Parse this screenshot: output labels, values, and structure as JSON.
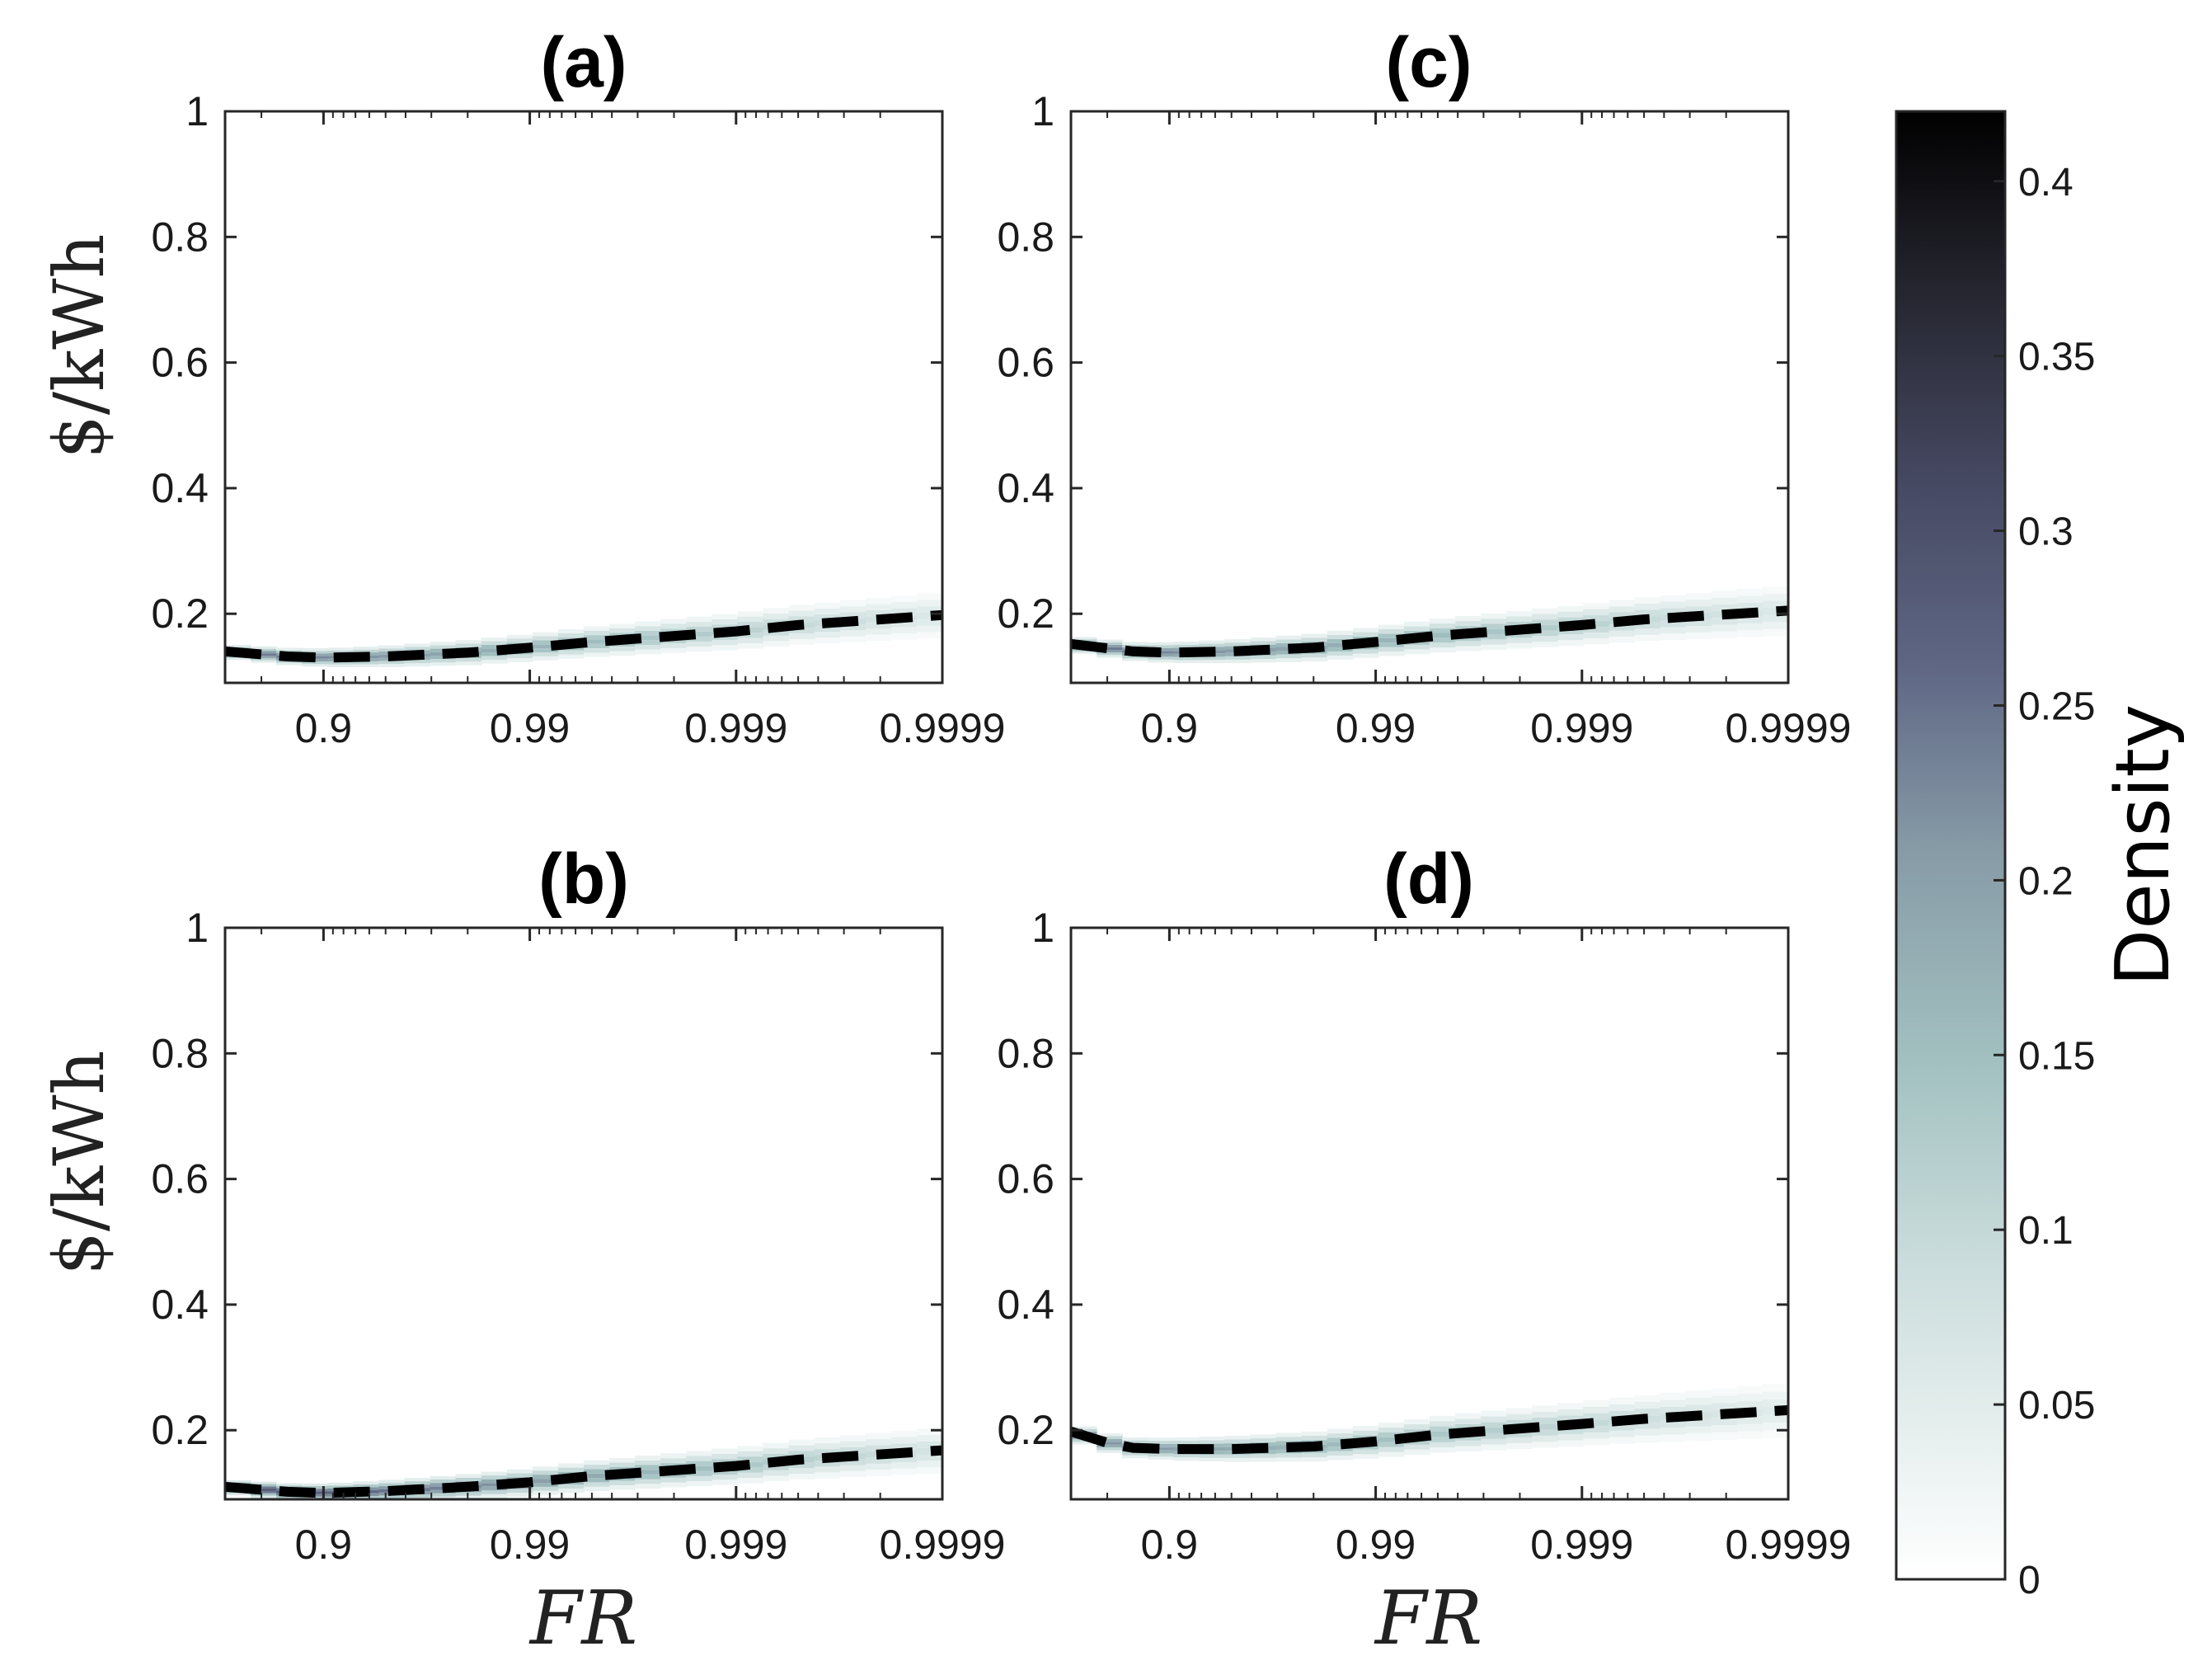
{
  "figure": {
    "colorbar": {
      "label": "Density",
      "ticks": [
        "0",
        "0.05",
        "0.1",
        "0.15",
        "0.2",
        "0.25",
        "0.3",
        "0.35",
        "0.4"
      ],
      "tick_values": [
        0,
        0.05,
        0.1,
        0.15,
        0.2,
        0.25,
        0.3,
        0.35,
        0.4
      ],
      "range": [
        0,
        0.42
      ],
      "color_low": "#ffffff",
      "color_mid": "#a9c6c6",
      "color_mid2": "#5c627e",
      "color_high": "#000000"
    },
    "line_color": "#000000"
  },
  "chart_data": [
    {
      "id": "a",
      "title": "(a)",
      "type": "line",
      "xscale": "log of (1 - FR)",
      "xlabel": "",
      "ylabel": "$/kWh",
      "xticks": [
        "0.9",
        "0.99",
        "0.999",
        "0.9999"
      ],
      "xtick_values": [
        0.9,
        0.99,
        0.999,
        0.9999
      ],
      "xlim": [
        0.7,
        0.9999
      ],
      "ylim": [
        0.09,
        1
      ],
      "yticks": [
        "0.2",
        "0.4",
        "0.6",
        "0.8",
        "1"
      ],
      "ytick_values": [
        0.2,
        0.4,
        0.6,
        0.8,
        1
      ],
      "series": [
        {
          "name": "mean (dashed)",
          "x": [
            0.7,
            0.85,
            0.9,
            0.95,
            0.98,
            0.99,
            0.995,
            0.999,
            0.9995,
            0.9999
          ],
          "y": [
            0.14,
            0.132,
            0.13,
            0.132,
            0.138,
            0.146,
            0.155,
            0.172,
            0.182,
            0.198
          ]
        }
      ],
      "density_band": {
        "halfwidth": 0.02,
        "peak_density": 0.25
      }
    },
    {
      "id": "b",
      "title": "(b)",
      "type": "line",
      "xscale": "log of (1 - FR)",
      "xlabel": "FR",
      "ylabel": "$/kWh",
      "xticks": [
        "0.9",
        "0.99",
        "0.999",
        "0.9999"
      ],
      "xtick_values": [
        0.9,
        0.99,
        0.999,
        0.9999
      ],
      "xlim": [
        0.7,
        0.9999
      ],
      "ylim": [
        0.09,
        1
      ],
      "yticks": [
        "0.2",
        "0.4",
        "0.6",
        "0.8",
        "1"
      ],
      "ytick_values": [
        0.2,
        0.4,
        0.6,
        0.8,
        1
      ],
      "series": [
        {
          "name": "mean (dashed)",
          "x": [
            0.7,
            0.85,
            0.9,
            0.95,
            0.98,
            0.99,
            0.995,
            0.999,
            0.9995,
            0.9999
          ],
          "y": [
            0.11,
            0.102,
            0.1,
            0.103,
            0.11,
            0.117,
            0.127,
            0.143,
            0.153,
            0.168
          ]
        }
      ],
      "density_band": {
        "halfwidth": 0.02,
        "peak_density": 0.3
      }
    },
    {
      "id": "c",
      "title": "(c)",
      "type": "line",
      "xscale": "log of (1 - FR)",
      "xlabel": "",
      "ylabel": "",
      "xticks": [
        "0.9",
        "0.99",
        "0.999",
        "0.9999"
      ],
      "xtick_values": [
        0.9,
        0.99,
        0.999,
        0.9999
      ],
      "xlim": [
        0.7,
        0.9999
      ],
      "ylim": [
        0.09,
        1
      ],
      "yticks": [
        "0.2",
        "0.4",
        "0.6",
        "0.8",
        "1"
      ],
      "ytick_values": [
        0.2,
        0.4,
        0.6,
        0.8,
        1
      ],
      "series": [
        {
          "name": "mean (dashed)",
          "x": [
            0.7,
            0.85,
            0.9,
            0.95,
            0.98,
            0.99,
            0.995,
            0.999,
            0.9995,
            0.9999
          ],
          "y": [
            0.152,
            0.14,
            0.138,
            0.14,
            0.146,
            0.155,
            0.165,
            0.182,
            0.191,
            0.205
          ]
        }
      ],
      "density_band": {
        "halfwidth": 0.022,
        "peak_density": 0.25
      }
    },
    {
      "id": "d",
      "title": "(d)",
      "type": "line",
      "xscale": "log of (1 - FR)",
      "xlabel": "FR",
      "ylabel": "",
      "xticks": [
        "0.9",
        "0.99",
        "0.999",
        "0.9999"
      ],
      "xtick_values": [
        0.9,
        0.99,
        0.999,
        0.9999
      ],
      "xlim": [
        0.7,
        0.9999
      ],
      "ylim": [
        0.09,
        1
      ],
      "yticks": [
        "0.2",
        "0.4",
        "0.6",
        "0.8",
        "1"
      ],
      "ytick_values": [
        0.2,
        0.4,
        0.6,
        0.8,
        1
      ],
      "series": [
        {
          "name": "mean (dashed)",
          "x": [
            0.7,
            0.8,
            0.85,
            0.9,
            0.95,
            0.98,
            0.99,
            0.995,
            0.999,
            0.9995,
            0.9999
          ],
          "y": [
            0.198,
            0.18,
            0.172,
            0.17,
            0.17,
            0.174,
            0.182,
            0.193,
            0.21,
            0.218,
            0.232
          ]
        }
      ],
      "density_band": {
        "halfwidth": 0.024,
        "peak_density": 0.22
      }
    }
  ]
}
